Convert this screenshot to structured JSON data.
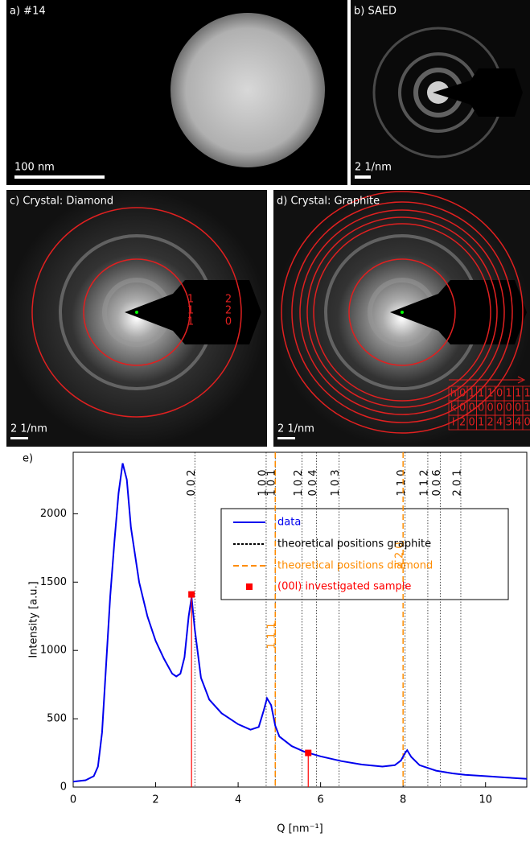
{
  "panels": [
    {
      "label": "a)  #14",
      "scale": "100 nm"
    },
    {
      "label": "b) SAED",
      "scale": "2 1/nm"
    },
    {
      "label": "c) Crystal: Diamond",
      "scale": "2 1/nm"
    },
    {
      "label": "d) Crystal: Graphite",
      "scale": "2 1/nm"
    }
  ],
  "diamond_indices": [
    [
      "1",
      "1",
      "1"
    ],
    [
      "2",
      "2",
      "0"
    ]
  ],
  "graphite_table": [
    [
      "h",
      "0",
      "1",
      "1",
      "1",
      "0",
      "1",
      "1",
      "1"
    ],
    [
      "k",
      "0",
      "0",
      "0",
      "0",
      "0",
      "0",
      "0",
      "1"
    ],
    [
      "l",
      "2",
      "0",
      "1",
      "2",
      "4",
      "3",
      "4",
      "0"
    ]
  ],
  "chart_data": {
    "type": "line",
    "panel_label": "e)",
    "xlabel": "Q [nm⁻¹]",
    "ylabel": "Intensity [a.u.]",
    "xlim": [
      0,
      11
    ],
    "ylim": [
      0,
      2450
    ],
    "xticks": [
      0,
      2,
      4,
      6,
      8,
      10
    ],
    "yticks": [
      0,
      500,
      1000,
      1500,
      2000
    ],
    "series": [
      {
        "name": "data",
        "color": "#0000ee",
        "x": [
          0,
          0.3,
          0.5,
          0.6,
          0.7,
          0.8,
          0.9,
          1.0,
          1.1,
          1.2,
          1.3,
          1.4,
          1.6,
          1.8,
          2.0,
          2.2,
          2.4,
          2.5,
          2.6,
          2.7,
          2.8,
          2.87,
          2.95,
          3.1,
          3.3,
          3.6,
          4.0,
          4.3,
          4.5,
          4.62,
          4.7,
          4.8,
          4.9,
          5.0,
          5.3,
          5.6,
          6.0,
          6.5,
          7.0,
          7.5,
          7.8,
          7.95,
          8.05,
          8.1,
          8.2,
          8.4,
          8.8,
          9.2,
          9.35,
          9.5,
          10,
          10.5,
          11
        ],
        "values": [
          40,
          50,
          80,
          150,
          400,
          900,
          1400,
          1800,
          2150,
          2370,
          2250,
          1900,
          1500,
          1250,
          1070,
          940,
          830,
          810,
          830,
          950,
          1250,
          1390,
          1150,
          800,
          640,
          540,
          460,
          420,
          440,
          560,
          650,
          600,
          450,
          370,
          300,
          260,
          225,
          190,
          165,
          150,
          160,
          195,
          250,
          270,
          220,
          160,
          120,
          100,
          95,
          90,
          80,
          70,
          60
        ]
      },
      {
        "name": "theoretical positions graphite",
        "color": "#000000",
        "x": [
          2.95,
          4.68,
          4.9,
          5.55,
          5.9,
          6.45,
          8.05,
          8.6,
          8.9,
          9.4
        ],
        "labels": [
          "0 0 2",
          "1 0 0",
          "1 0 1",
          "1 0 2",
          "0 0 4",
          "1 0 3",
          "1 1 0",
          "1 1 2",
          "0 0 6",
          "2 0 1"
        ]
      },
      {
        "name": "theoretical positions diamond",
        "color": "#ff8c00",
        "x": [
          4.9,
          8.0
        ],
        "labels": [
          "1 1 1",
          "2 2 0"
        ]
      },
      {
        "name": "(00l) investigated sample",
        "color": "#ff0000",
        "x": [
          2.87,
          5.7
        ],
        "values": [
          1410,
          250
        ]
      }
    ]
  }
}
